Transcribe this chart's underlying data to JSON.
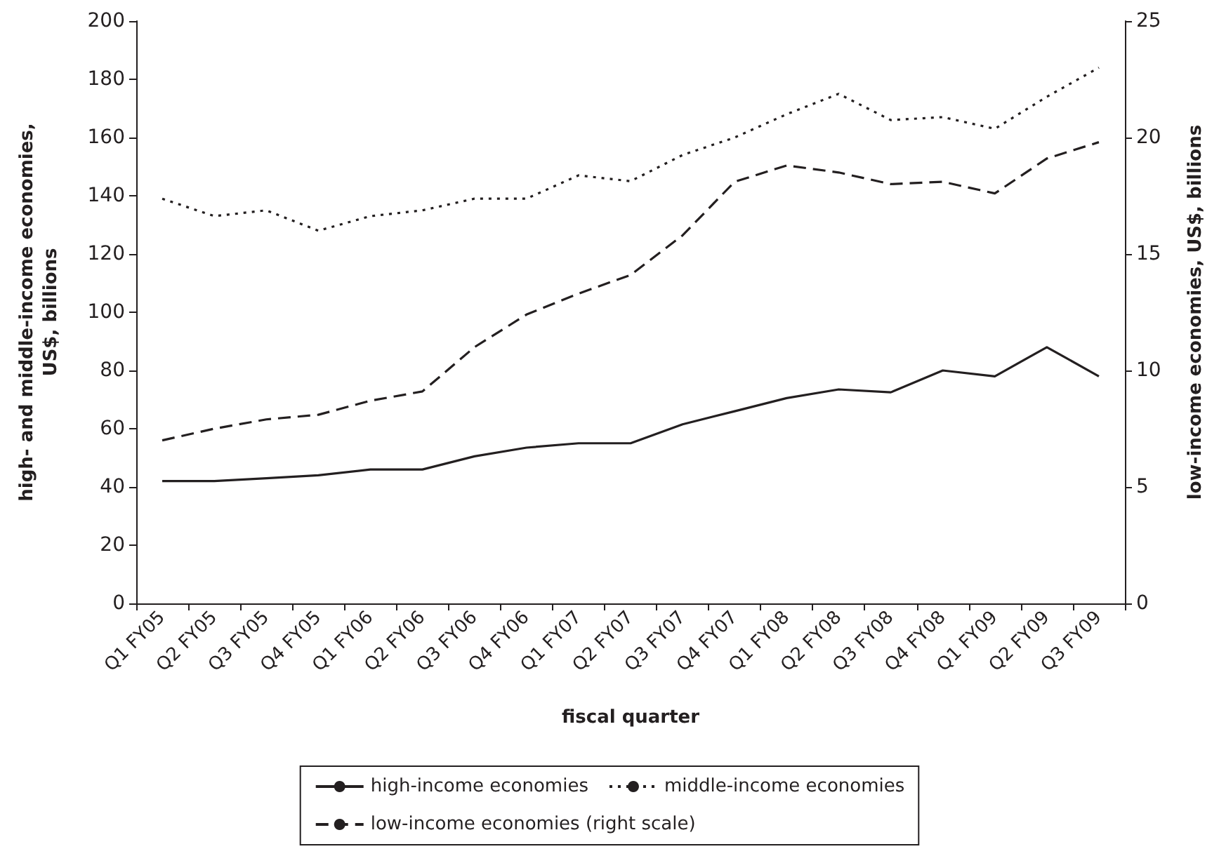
{
  "chart_data": {
    "type": "line",
    "xlabel": "fiscal quarter",
    "ylabel": "high- and middle-income economies,\nUS$, billions",
    "y2label": "low-income economies, US$, billions",
    "categories": [
      "Q1 FY05",
      "Q2 FY05",
      "Q3 FY05",
      "Q4 FY05",
      "Q1 FY06",
      "Q2 FY06",
      "Q3 FY06",
      "Q4 FY06",
      "Q1 FY07",
      "Q2 FY07",
      "Q3 FY07",
      "Q4 FY07",
      "Q1 FY08",
      "Q2 FY08",
      "Q3 FY08",
      "Q4 FY08",
      "Q1 FY09",
      "Q2 FY09",
      "Q3 FY09"
    ],
    "series": [
      {
        "name": "high-income economies",
        "color": "#231f20",
        "line_style": "solid",
        "values": [
          42,
          42,
          43,
          44,
          46,
          46,
          50.5,
          53.5,
          55,
          55,
          61.5,
          66,
          70.5,
          73.5,
          72.5,
          80,
          78,
          88,
          78
        ]
      },
      {
        "name": "middle-income economies",
        "color": "#231f20",
        "line_style": "dotted",
        "values": [
          139,
          133,
          135,
          128,
          133,
          135,
          139,
          139,
          147,
          145,
          154,
          160,
          168,
          175,
          166,
          167,
          163,
          174,
          184
        ]
      },
      {
        "name": "low-income economies (right scale)",
        "color": "#231f20",
        "line_style": "dashed",
        "axis": "y2",
        "values": [
          7.0,
          7.5,
          7.9,
          8.1,
          8.7,
          9.1,
          11.0,
          12.4,
          13.3,
          14.1,
          15.8,
          18.1,
          18.8,
          18.5,
          18.0,
          18.1,
          17.6,
          19.1,
          19.8
        ]
      }
    ],
    "ylim": [
      0,
      200
    ],
    "yticks": [
      0,
      20,
      40,
      60,
      80,
      100,
      120,
      140,
      160,
      180,
      200
    ],
    "y2lim": [
      0,
      25
    ],
    "y2ticks": [
      0,
      5,
      10,
      15,
      20,
      25
    ],
    "grid": false,
    "legend": "bottom",
    "marker": "none"
  }
}
